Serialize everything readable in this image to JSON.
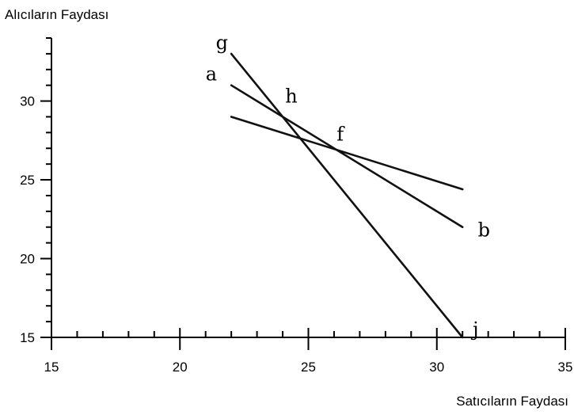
{
  "chart_data": {
    "type": "line",
    "xlabel": "Satıcıların Faydası",
    "ylabel": "Alıcıların Faydası",
    "xlim": [
      15,
      35
    ],
    "ylim": [
      15,
      34
    ],
    "x_ticks": [
      15,
      20,
      25,
      30,
      35
    ],
    "y_ticks": [
      15,
      20,
      25,
      30
    ],
    "series": [
      {
        "points": [
          [
            22,
            31
          ],
          [
            31,
            22
          ]
        ],
        "labels": [
          "a",
          "b"
        ]
      },
      {
        "points": [
          [
            22,
            33
          ],
          [
            31,
            15
          ]
        ],
        "labels": [
          "g",
          "j"
        ]
      },
      {
        "points": [
          [
            22,
            29
          ],
          [
            31,
            24.4
          ]
        ]
      }
    ],
    "annotations": [
      {
        "text": "a",
        "x": 21,
        "y": 31.3
      },
      {
        "text": "b",
        "x": 31.6,
        "y": 21.4
      },
      {
        "text": "g",
        "x": 21.4,
        "y": 33.3
      },
      {
        "text": "j",
        "x": 31.4,
        "y": 15.1
      },
      {
        "text": "h",
        "x": 24.1,
        "y": 29.9
      },
      {
        "text": "f",
        "x": 26.1,
        "y": 27.5
      }
    ],
    "grid": false,
    "legend": "none"
  }
}
